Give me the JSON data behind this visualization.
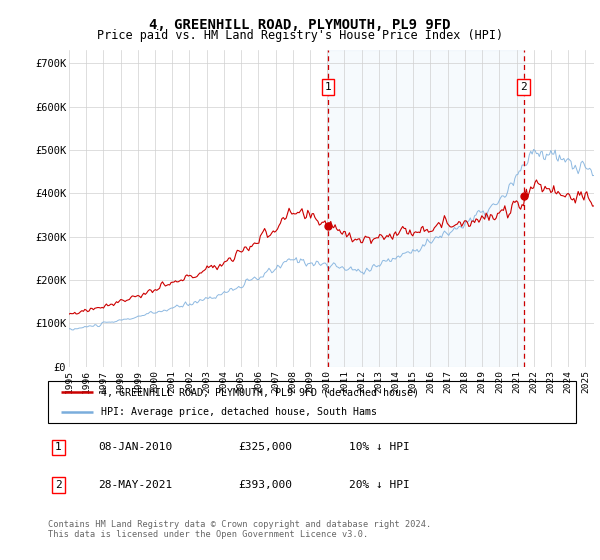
{
  "title": "4, GREENHILL ROAD, PLYMOUTH, PL9 9FD",
  "subtitle": "Price paid vs. HM Land Registry's House Price Index (HPI)",
  "ylabel_ticks": [
    "£0",
    "£100K",
    "£200K",
    "£300K",
    "£400K",
    "£500K",
    "£600K",
    "£700K"
  ],
  "ytick_values": [
    0,
    100000,
    200000,
    300000,
    400000,
    500000,
    600000,
    700000
  ],
  "ylim": [
    0,
    730000
  ],
  "xlim_start": 1995.0,
  "xlim_end": 2025.5,
  "sale1_date": 2010.03,
  "sale1_price": 325000,
  "sale2_date": 2021.41,
  "sale2_price": 393000,
  "hpi_color": "#7aaddc",
  "sale_color": "#cc0000",
  "legend_label1": "4, GREENHILL ROAD, PLYMOUTH, PL9 9FD (detached house)",
  "legend_label2": "HPI: Average price, detached house, South Hams",
  "footnote": "Contains HM Land Registry data © Crown copyright and database right 2024.\nThis data is licensed under the Open Government Licence v3.0.",
  "table_row1": [
    "1",
    "08-JAN-2010",
    "£325,000",
    "10% ↓ HPI"
  ],
  "table_row2": [
    "2",
    "28-MAY-2021",
    "£393,000",
    "20% ↓ HPI"
  ],
  "hpi_seed": 10,
  "prop_seed": 77
}
